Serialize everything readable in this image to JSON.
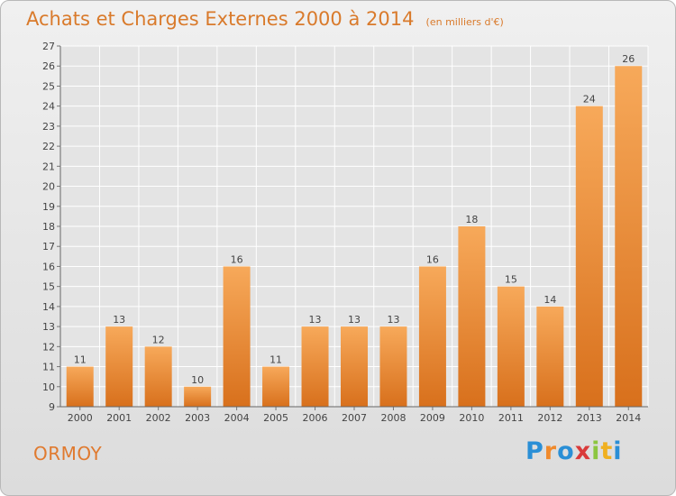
{
  "header": {
    "title": "Achats et Charges Externes 2000 à 2014",
    "subtitle": "(en milliers d'€)"
  },
  "footer": {
    "commune": "ORMOY",
    "logo": "Proxiti"
  },
  "chart_data": {
    "type": "bar",
    "title": "Achats et Charges Externes 2000 à 2014",
    "subtitle": "(en milliers d'€)",
    "categories": [
      "2000",
      "2001",
      "2002",
      "2003",
      "2004",
      "2005",
      "2006",
      "2007",
      "2008",
      "2009",
      "2010",
      "2011",
      "2012",
      "2013",
      "2014"
    ],
    "values": [
      11,
      13,
      12,
      10,
      16,
      11,
      13,
      13,
      13,
      16,
      18,
      15,
      14,
      24,
      26
    ],
    "xlabel": "",
    "ylabel": "",
    "ylim": [
      9,
      27
    ],
    "yticks": [
      9,
      10,
      11,
      12,
      13,
      14,
      15,
      16,
      17,
      18,
      19,
      20,
      21,
      22,
      23,
      24,
      25,
      26,
      27
    ],
    "grid": true,
    "bar_color": "#f08a2c",
    "legend": "none"
  }
}
